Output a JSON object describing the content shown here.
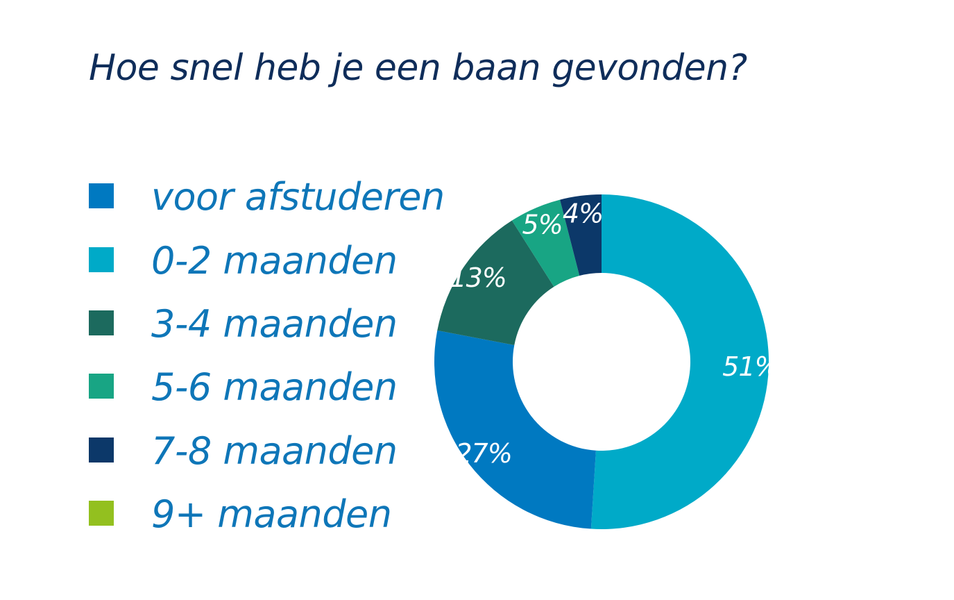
{
  "chart_data": {
    "type": "pie",
    "title": "Hoe snel heb je een baan gevonden?",
    "legend_position": "left",
    "categories": [
      "voor afstuderen",
      "0-2 maanden",
      "3-4 maanden",
      "5-6 maanden",
      "7-8 maanden",
      "9+ maanden"
    ],
    "values": [
      27,
      51,
      13,
      5,
      4,
      0
    ],
    "labels": [
      "27%",
      "51%",
      "13%",
      "5%",
      "4%",
      ""
    ],
    "colors": [
      "#0079c1",
      "#00aac8",
      "#1c6a5e",
      "#18a584",
      "#0c3869",
      "#93c01f"
    ]
  }
}
